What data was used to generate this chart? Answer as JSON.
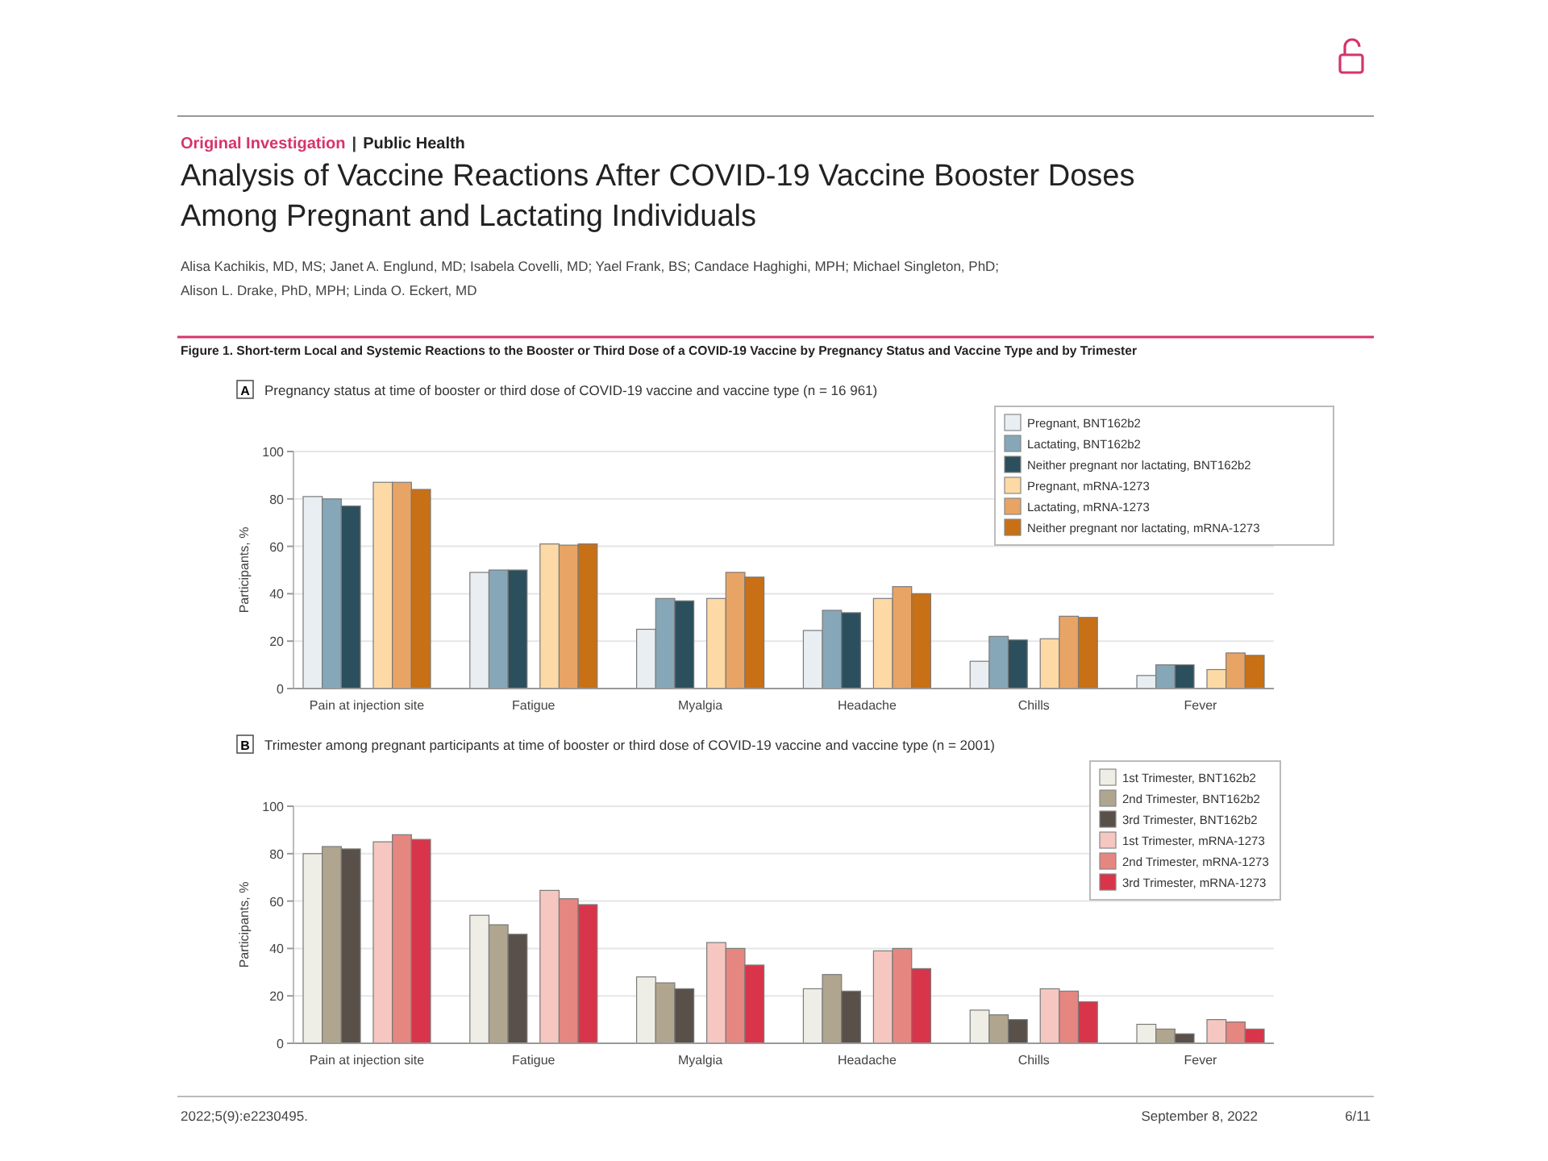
{
  "chart_data": [
    {
      "type": "bar",
      "title": "Pregnancy status at time of booster or third dose of COVID-19 vaccine and vaccine type (n = 16 961)",
      "ylabel": "Participants, %",
      "annotations": [
        "A",
        "Original Investigation",
        "Public Health",
        "|",
        "Analysis of Vaccine Reactions After COVID-19 Vaccine Booster Doses",
        "Among Pregnant and Lactating Individuals",
        "Alisa Kachikis, MD, MS; Janet A. Englund, MD; Isabela Covelli, MD; Yael Frank, BS; Candace Haghighi, MPH; Michael Singleton, PhD;",
        "Alison L. Drake, PhD, MPH; Linda O. Eckert, MD",
        "Figure 1. Short-term Local and Systemic Reactions to the Booster or Third Dose of a COVID-19 Vaccine by Pregnancy Status and Vaccine Type and by Trimester"
      ],
      "categories": [
        "Pain at injection site",
        "Fatigue",
        "Myalgia",
        "Headache",
        "Chills",
        "Fever"
      ],
      "series": [
        {
          "name": "Pregnant, BNT162b2",
          "color": "#e8eef2",
          "values": [
            81,
            49,
            25,
            24.5,
            11.5,
            5.5
          ]
        },
        {
          "name": "Lactating, BNT162b2",
          "color": "#86a7b8",
          "values": [
            80,
            50,
            38,
            33,
            22,
            10
          ]
        },
        {
          "name": "Neither pregnant nor lactating, BNT162b2",
          "color": "#2c4f5e",
          "values": [
            77,
            50,
            37,
            32,
            20.5,
            10
          ]
        },
        {
          "name": "Pregnant, mRNA-1273",
          "color": "#fdd9a5",
          "values": [
            87,
            61,
            38,
            38,
            21,
            8
          ]
        },
        {
          "name": "Lactating, mRNA-1273",
          "color": "#e8a464",
          "values": [
            87,
            60.5,
            49,
            43,
            30.5,
            15
          ]
        },
        {
          "name": "Neither pregnant nor lactating, mRNA-1273",
          "color": "#c87015",
          "values": [
            84,
            61,
            47,
            40,
            30,
            14
          ]
        }
      ],
      "ylim": [
        0,
        100
      ],
      "yticks": [
        0,
        20,
        40,
        60,
        80,
        100
      ],
      "grid": "y",
      "legend": "top right"
    },
    {
      "type": "bar",
      "title": "Trimester among pregnant participants at time of booster or third dose of COVID-19 vaccine and vaccine type (n = 2001)",
      "ylabel": "Participants, %",
      "annotations": [
        "B",
        "2022;5(9):e2230495.",
        "September 8, 2022",
        "6/11"
      ],
      "categories": [
        "Pain at injection site",
        "Fatigue",
        "Myalgia",
        "Headache",
        "Chills",
        "Fever"
      ],
      "series": [
        {
          "name": "1st Trimester, BNT162b2",
          "color": "#efeee6",
          "values": [
            80,
            54,
            28,
            23,
            14,
            8
          ]
        },
        {
          "name": "2nd Trimester, BNT162b2",
          "color": "#b0a58f",
          "values": [
            83,
            50,
            25.5,
            29,
            12,
            6
          ]
        },
        {
          "name": "3rd Trimester, BNT162b2",
          "color": "#59504a",
          "values": [
            82,
            46,
            23,
            22,
            10,
            4
          ]
        },
        {
          "name": "1st Trimester, mRNA-1273",
          "color": "#f6c6c0",
          "values": [
            85,
            64.5,
            42.5,
            39,
            23,
            10
          ]
        },
        {
          "name": "2nd Trimester, mRNA-1273",
          "color": "#e58680",
          "values": [
            88,
            61,
            40,
            40,
            22,
            9
          ]
        },
        {
          "name": "3rd Trimester, mRNA-1273",
          "color": "#d8354b",
          "values": [
            86,
            58.5,
            33,
            31.5,
            17.5,
            6
          ]
        }
      ],
      "ylim": [
        0,
        100
      ],
      "yticks": [
        0,
        20,
        40,
        60,
        80,
        100
      ],
      "grid": "y",
      "legend": "top right"
    }
  ]
}
